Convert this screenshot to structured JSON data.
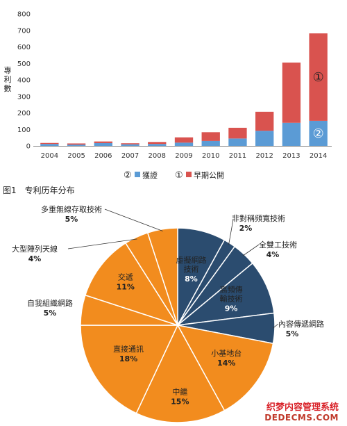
{
  "chart_data": [
    {
      "type": "bar",
      "stacked": true,
      "categories": [
        "2004",
        "2005",
        "2006",
        "2007",
        "2008",
        "2009",
        "2010",
        "2011",
        "2012",
        "2013",
        "2014"
      ],
      "series": [
        {
          "name": "獲證",
          "marker": "②",
          "color": "#5b9bd5",
          "values": [
            12,
            8,
            17,
            10,
            12,
            20,
            30,
            45,
            92,
            140,
            152
          ]
        },
        {
          "name": "早期公開",
          "marker": "①",
          "color": "#d9534f",
          "values": [
            6,
            7,
            10,
            6,
            12,
            32,
            53,
            65,
            115,
            365,
            530
          ]
        }
      ],
      "ylabel": "專利數",
      "ylim": [
        0,
        800
      ],
      "yticks": [
        0,
        100,
        200,
        300,
        400,
        500,
        600,
        700,
        800
      ],
      "bar_annotations": {
        "upper": "①",
        "lower": "②"
      },
      "grid": false,
      "legend": "bottom"
    },
    {
      "type": "pie",
      "caption": "图1　专利历年分布",
      "slices": [
        {
          "label": "虛擬網路技術",
          "label_lines": [
            "虛擬網路",
            "技術"
          ],
          "value": 8,
          "pct": "8%",
          "color": "#2b4c6f"
        },
        {
          "label": "非對稱頻寬技術",
          "label_lines": [
            "非對稱頻寬技術"
          ],
          "value": 2,
          "pct": "2%",
          "color": "#2b4c6f"
        },
        {
          "label": "全雙工技術",
          "label_lines": [
            "全雙工技術"
          ],
          "value": 4,
          "pct": "4%",
          "color": "#2b4c6f"
        },
        {
          "label": "高頻傳輸技術",
          "label_lines": [
            "高頻傳",
            "輸技術"
          ],
          "value": 9,
          "pct": "9%",
          "color": "#2b4c6f"
        },
        {
          "label": "內容傳遞網路",
          "label_lines": [
            "內容傳遞網路"
          ],
          "value": 5,
          "pct": "5%",
          "color": "#2b4c6f"
        },
        {
          "label": "小基地台",
          "label_lines": [
            "小基地台"
          ],
          "value": 14,
          "pct": "14%",
          "color": "#f28c1e"
        },
        {
          "label": "中繼",
          "label_lines": [
            "中繼"
          ],
          "value": 15,
          "pct": "15%",
          "color": "#f28c1e"
        },
        {
          "label": "直接通訊",
          "label_lines": [
            "直接通訊"
          ],
          "value": 18,
          "pct": "18%",
          "color": "#f28c1e"
        },
        {
          "label": "自我組織網路",
          "label_lines": [
            "自我組織網路"
          ],
          "value": 5,
          "pct": "5%",
          "color": "#f28c1e"
        },
        {
          "label": "交遞",
          "label_lines": [
            "交遞"
          ],
          "value": 11,
          "pct": "11%",
          "color": "#f28c1e"
        },
        {
          "label": "大型陣列天線",
          "label_lines": [
            "大型陣列天線"
          ],
          "value": 4,
          "pct": "4%",
          "color": "#f28c1e"
        },
        {
          "label": "多重無線存取技術",
          "label_lines": [
            "多重無線存取技術"
          ],
          "value": 5,
          "pct": "5%",
          "color": "#f28c1e"
        }
      ]
    }
  ],
  "watermark": {
    "line1": "织梦内容管理系统",
    "line2": "DEDECMS.COM"
  }
}
